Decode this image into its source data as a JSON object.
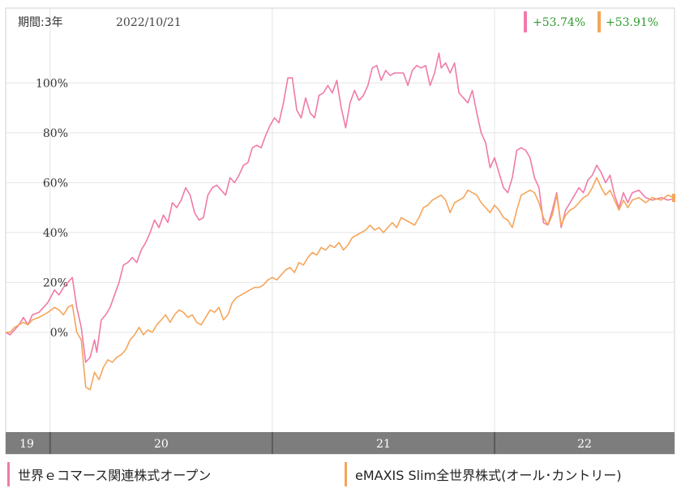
{
  "header": {
    "period_label": "期間:3年",
    "date_label": "2022/10/21",
    "badges": [
      {
        "text": "+53.74%",
        "bar_color": "#f07aa8",
        "text_color": "#2e9a2e"
      },
      {
        "text": "+53.91%",
        "bar_color": "#f5a55a",
        "text_color": "#2e9a2e"
      }
    ]
  },
  "legend": [
    {
      "label": "世界ｅコマース関連株式オープン",
      "color": "#f07aa8"
    },
    {
      "label": "eMAXIS Slim全世界株式(オール･カントリー)",
      "color": "#f5a55a"
    }
  ],
  "chart_data": {
    "type": "line",
    "y_unit": "%",
    "ylim": [
      -40,
      130
    ],
    "y_ticks": [
      {
        "value": 100,
        "label": "100%"
      },
      {
        "value": 80,
        "label": "80%"
      },
      {
        "value": 60,
        "label": "60%"
      },
      {
        "value": 40,
        "label": "40%"
      },
      {
        "value": 20,
        "label": "20%"
      },
      {
        "value": 0,
        "label": "0%"
      }
    ],
    "x_range": [
      2019.8,
      2022.81
    ],
    "x_ticks": [
      {
        "value": 2019.8,
        "label": "19"
      },
      {
        "value": 2020.0,
        "label": "20"
      },
      {
        "value": 2021.0,
        "label": "21"
      },
      {
        "value": 2022.0,
        "label": "22"
      }
    ],
    "grid": true,
    "series": [
      {
        "name": "世界ｅコマース関連株式オープン",
        "color": "#f07aa8",
        "points": [
          [
            2019.8,
            0
          ],
          [
            2019.82,
            -1
          ],
          [
            2019.84,
            1
          ],
          [
            2019.86,
            3
          ],
          [
            2019.88,
            6
          ],
          [
            2019.9,
            3
          ],
          [
            2019.92,
            7
          ],
          [
            2019.95,
            8
          ],
          [
            2019.97,
            10
          ],
          [
            2019.99,
            12
          ],
          [
            2020.02,
            17
          ],
          [
            2020.04,
            15
          ],
          [
            2020.06,
            18
          ],
          [
            2020.08,
            20
          ],
          [
            2020.1,
            22
          ],
          [
            2020.12,
            10
          ],
          [
            2020.14,
            2
          ],
          [
            2020.16,
            -12
          ],
          [
            2020.18,
            -10
          ],
          [
            2020.2,
            -3
          ],
          [
            2020.21,
            -8
          ],
          [
            2020.23,
            5
          ],
          [
            2020.25,
            7
          ],
          [
            2020.27,
            10
          ],
          [
            2020.29,
            15
          ],
          [
            2020.31,
            20
          ],
          [
            2020.33,
            27
          ],
          [
            2020.35,
            28
          ],
          [
            2020.37,
            30
          ],
          [
            2020.39,
            28
          ],
          [
            2020.41,
            33
          ],
          [
            2020.43,
            36
          ],
          [
            2020.45,
            40
          ],
          [
            2020.47,
            45
          ],
          [
            2020.49,
            42
          ],
          [
            2020.51,
            47
          ],
          [
            2020.53,
            44
          ],
          [
            2020.55,
            52
          ],
          [
            2020.57,
            50
          ],
          [
            2020.59,
            53
          ],
          [
            2020.61,
            58
          ],
          [
            2020.63,
            55
          ],
          [
            2020.65,
            48
          ],
          [
            2020.67,
            45
          ],
          [
            2020.69,
            46
          ],
          [
            2020.71,
            55
          ],
          [
            2020.73,
            58
          ],
          [
            2020.75,
            59
          ],
          [
            2020.77,
            57
          ],
          [
            2020.79,
            55
          ],
          [
            2020.81,
            62
          ],
          [
            2020.83,
            60
          ],
          [
            2020.85,
            63
          ],
          [
            2020.87,
            67
          ],
          [
            2020.89,
            68
          ],
          [
            2020.91,
            74
          ],
          [
            2020.93,
            75
          ],
          [
            2020.95,
            74
          ],
          [
            2020.97,
            79
          ],
          [
            2020.99,
            83
          ],
          [
            2021.01,
            86
          ],
          [
            2021.03,
            84
          ],
          [
            2021.05,
            92
          ],
          [
            2021.07,
            102
          ],
          [
            2021.09,
            102
          ],
          [
            2021.11,
            89
          ],
          [
            2021.13,
            86
          ],
          [
            2021.15,
            94
          ],
          [
            2021.17,
            88
          ],
          [
            2021.19,
            86
          ],
          [
            2021.21,
            95
          ],
          [
            2021.23,
            96
          ],
          [
            2021.25,
            99
          ],
          [
            2021.27,
            96
          ],
          [
            2021.29,
            101
          ],
          [
            2021.31,
            90
          ],
          [
            2021.33,
            82
          ],
          [
            2021.35,
            92
          ],
          [
            2021.37,
            97
          ],
          [
            2021.39,
            93
          ],
          [
            2021.41,
            95
          ],
          [
            2021.43,
            99
          ],
          [
            2021.45,
            106
          ],
          [
            2021.47,
            107
          ],
          [
            2021.49,
            101
          ],
          [
            2021.51,
            105
          ],
          [
            2021.53,
            103
          ],
          [
            2021.55,
            104
          ],
          [
            2021.57,
            104
          ],
          [
            2021.59,
            104
          ],
          [
            2021.61,
            99
          ],
          [
            2021.63,
            105
          ],
          [
            2021.65,
            107
          ],
          [
            2021.67,
            106
          ],
          [
            2021.69,
            107
          ],
          [
            2021.71,
            99
          ],
          [
            2021.73,
            104
          ],
          [
            2021.75,
            112
          ],
          [
            2021.76,
            106
          ],
          [
            2021.78,
            108
          ],
          [
            2021.8,
            104
          ],
          [
            2021.82,
            108
          ],
          [
            2021.84,
            96
          ],
          [
            2021.86,
            94
          ],
          [
            2021.88,
            92
          ],
          [
            2021.9,
            97
          ],
          [
            2021.92,
            88
          ],
          [
            2021.94,
            80
          ],
          [
            2021.96,
            76
          ],
          [
            2021.98,
            66
          ],
          [
            2022.0,
            70
          ],
          [
            2022.02,
            64
          ],
          [
            2022.04,
            58
          ],
          [
            2022.06,
            56
          ],
          [
            2022.08,
            62
          ],
          [
            2022.1,
            73
          ],
          [
            2022.12,
            74
          ],
          [
            2022.14,
            73
          ],
          [
            2022.16,
            70
          ],
          [
            2022.18,
            62
          ],
          [
            2022.2,
            58
          ],
          [
            2022.22,
            44
          ],
          [
            2022.24,
            43
          ],
          [
            2022.26,
            49
          ],
          [
            2022.28,
            56
          ],
          [
            2022.3,
            42
          ],
          [
            2022.32,
            49
          ],
          [
            2022.34,
            52
          ],
          [
            2022.36,
            55
          ],
          [
            2022.38,
            58
          ],
          [
            2022.4,
            56
          ],
          [
            2022.42,
            61
          ],
          [
            2022.44,
            63
          ],
          [
            2022.46,
            67
          ],
          [
            2022.48,
            64
          ],
          [
            2022.5,
            60
          ],
          [
            2022.52,
            63
          ],
          [
            2022.54,
            55
          ],
          [
            2022.56,
            50
          ],
          [
            2022.58,
            56
          ],
          [
            2022.6,
            52
          ],
          [
            2022.62,
            56
          ],
          [
            2022.65,
            57
          ],
          [
            2022.68,
            54
          ],
          [
            2022.71,
            53
          ],
          [
            2022.75,
            54
          ],
          [
            2022.78,
            53
          ],
          [
            2022.81,
            53.74
          ]
        ]
      },
      {
        "name": "eMAXIS Slim全世界株式(オール･カントリー)",
        "color": "#f5a55a",
        "points": [
          [
            2019.8,
            0
          ],
          [
            2019.82,
            0
          ],
          [
            2019.84,
            2
          ],
          [
            2019.86,
            3
          ],
          [
            2019.88,
            4
          ],
          [
            2019.9,
            3
          ],
          [
            2019.92,
            5
          ],
          [
            2019.95,
            6
          ],
          [
            2019.97,
            7
          ],
          [
            2019.99,
            8
          ],
          [
            2020.02,
            10
          ],
          [
            2020.04,
            9
          ],
          [
            2020.06,
            7
          ],
          [
            2020.08,
            10
          ],
          [
            2020.1,
            11
          ],
          [
            2020.12,
            0
          ],
          [
            2020.14,
            -3
          ],
          [
            2020.16,
            -22
          ],
          [
            2020.18,
            -23
          ],
          [
            2020.2,
            -16
          ],
          [
            2020.22,
            -19
          ],
          [
            2020.24,
            -14
          ],
          [
            2020.26,
            -11
          ],
          [
            2020.28,
            -12
          ],
          [
            2020.3,
            -10
          ],
          [
            2020.32,
            -9
          ],
          [
            2020.34,
            -7
          ],
          [
            2020.36,
            -3
          ],
          [
            2020.38,
            -1
          ],
          [
            2020.4,
            2
          ],
          [
            2020.42,
            -1
          ],
          [
            2020.44,
            1
          ],
          [
            2020.46,
            0
          ],
          [
            2020.48,
            3
          ],
          [
            2020.5,
            5
          ],
          [
            2020.52,
            7
          ],
          [
            2020.54,
            4
          ],
          [
            2020.56,
            7
          ],
          [
            2020.58,
            9
          ],
          [
            2020.6,
            8
          ],
          [
            2020.62,
            6
          ],
          [
            2020.64,
            7
          ],
          [
            2020.66,
            4
          ],
          [
            2020.68,
            3
          ],
          [
            2020.7,
            6
          ],
          [
            2020.72,
            9
          ],
          [
            2020.74,
            8
          ],
          [
            2020.76,
            10
          ],
          [
            2020.78,
            5
          ],
          [
            2020.8,
            7
          ],
          [
            2020.82,
            12
          ],
          [
            2020.84,
            14
          ],
          [
            2020.86,
            15
          ],
          [
            2020.88,
            16
          ],
          [
            2020.9,
            17
          ],
          [
            2020.92,
            18
          ],
          [
            2020.94,
            18
          ],
          [
            2020.96,
            19
          ],
          [
            2020.98,
            21
          ],
          [
            2021.0,
            22
          ],
          [
            2021.02,
            21
          ],
          [
            2021.04,
            23
          ],
          [
            2021.06,
            25
          ],
          [
            2021.08,
            26
          ],
          [
            2021.1,
            24
          ],
          [
            2021.12,
            28
          ],
          [
            2021.14,
            27
          ],
          [
            2021.16,
            30
          ],
          [
            2021.18,
            32
          ],
          [
            2021.2,
            31
          ],
          [
            2021.22,
            34
          ],
          [
            2021.24,
            33
          ],
          [
            2021.26,
            35
          ],
          [
            2021.28,
            34
          ],
          [
            2021.3,
            36
          ],
          [
            2021.32,
            33
          ],
          [
            2021.34,
            35
          ],
          [
            2021.36,
            38
          ],
          [
            2021.38,
            39
          ],
          [
            2021.4,
            40
          ],
          [
            2021.42,
            41
          ],
          [
            2021.44,
            43
          ],
          [
            2021.46,
            41
          ],
          [
            2021.48,
            42
          ],
          [
            2021.5,
            40
          ],
          [
            2021.52,
            42
          ],
          [
            2021.54,
            44
          ],
          [
            2021.56,
            42
          ],
          [
            2021.58,
            46
          ],
          [
            2021.6,
            45
          ],
          [
            2021.62,
            44
          ],
          [
            2021.64,
            43
          ],
          [
            2021.66,
            46
          ],
          [
            2021.68,
            50
          ],
          [
            2021.7,
            51
          ],
          [
            2021.72,
            53
          ],
          [
            2021.74,
            54
          ],
          [
            2021.76,
            55
          ],
          [
            2021.78,
            53
          ],
          [
            2021.8,
            48
          ],
          [
            2021.82,
            52
          ],
          [
            2021.84,
            53
          ],
          [
            2021.86,
            54
          ],
          [
            2021.88,
            57
          ],
          [
            2021.9,
            56
          ],
          [
            2021.92,
            55
          ],
          [
            2021.94,
            52
          ],
          [
            2021.96,
            50
          ],
          [
            2021.98,
            48
          ],
          [
            2022.0,
            51
          ],
          [
            2022.02,
            49
          ],
          [
            2022.04,
            46
          ],
          [
            2022.06,
            45
          ],
          [
            2022.08,
            42
          ],
          [
            2022.1,
            49
          ],
          [
            2022.12,
            55
          ],
          [
            2022.14,
            56
          ],
          [
            2022.16,
            57
          ],
          [
            2022.18,
            56
          ],
          [
            2022.2,
            52
          ],
          [
            2022.22,
            46
          ],
          [
            2022.24,
            43
          ],
          [
            2022.26,
            47
          ],
          [
            2022.28,
            55
          ],
          [
            2022.3,
            43
          ],
          [
            2022.32,
            47
          ],
          [
            2022.34,
            49
          ],
          [
            2022.36,
            50
          ],
          [
            2022.38,
            52
          ],
          [
            2022.4,
            54
          ],
          [
            2022.42,
            55
          ],
          [
            2022.44,
            58
          ],
          [
            2022.46,
            62
          ],
          [
            2022.48,
            58
          ],
          [
            2022.5,
            55
          ],
          [
            2022.52,
            57
          ],
          [
            2022.54,
            53
          ],
          [
            2022.56,
            49
          ],
          [
            2022.58,
            53
          ],
          [
            2022.6,
            50
          ],
          [
            2022.62,
            53
          ],
          [
            2022.65,
            54
          ],
          [
            2022.68,
            52
          ],
          [
            2022.71,
            54
          ],
          [
            2022.75,
            53
          ],
          [
            2022.78,
            55
          ],
          [
            2022.81,
            53.91
          ]
        ]
      }
    ]
  }
}
